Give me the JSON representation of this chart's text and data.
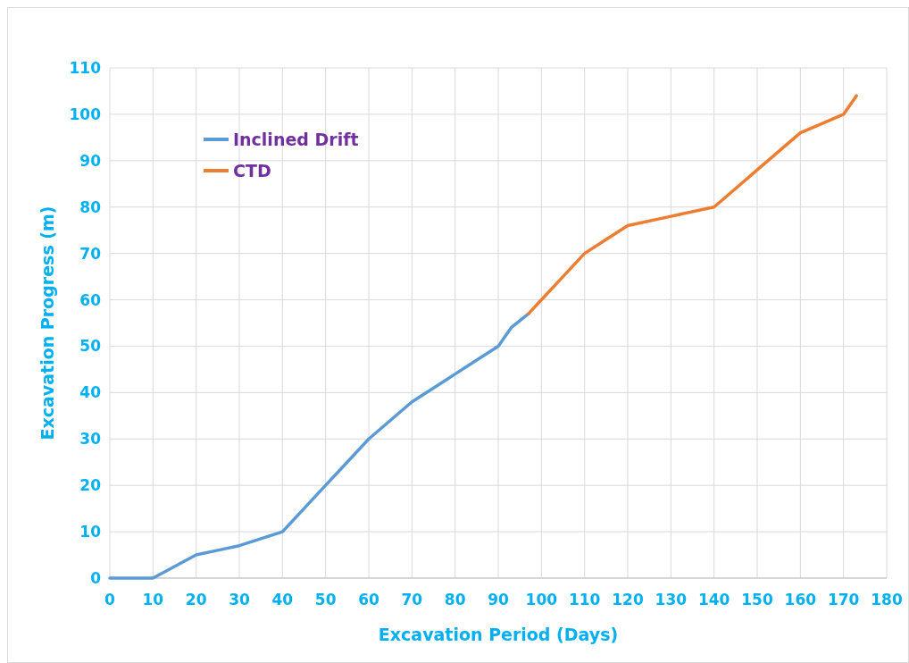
{
  "chart_data": {
    "type": "line",
    "xlabel": "Excavation Period (Days)",
    "ylabel": "Excavation Progress (m)",
    "xlim": [
      0,
      180
    ],
    "xticks": [
      0,
      10,
      20,
      30,
      40,
      50,
      60,
      70,
      80,
      90,
      100,
      110,
      120,
      130,
      140,
      150,
      160,
      170,
      180
    ],
    "ylim": [
      0,
      110
    ],
    "yticks": [
      0,
      10,
      20,
      30,
      40,
      50,
      60,
      70,
      80,
      90,
      100,
      110
    ],
    "grid": true,
    "legend": "top left",
    "marker": "none",
    "line_style": "solid",
    "series": [
      {
        "name": "Inclined Drift",
        "color": "#5b9bd5",
        "x": [
          0,
          10,
          15,
          20,
          25,
          30,
          35,
          40,
          42,
          45,
          50,
          55,
          60,
          65,
          70,
          75,
          80,
          85,
          90,
          93,
          97
        ],
        "values": [
          0,
          0,
          2.5,
          5,
          6,
          7,
          8.5,
          10,
          12,
          15,
          20,
          25,
          30,
          34,
          38,
          41,
          44,
          47,
          50,
          54,
          57
        ]
      },
      {
        "name": "CTD",
        "color": "#ed7d31",
        "x": [
          97,
          100,
          105,
          110,
          115,
          120,
          130,
          140,
          145,
          150,
          155,
          160,
          165,
          170,
          173
        ],
        "values": [
          57,
          60,
          65,
          70,
          73,
          76,
          78,
          80,
          84,
          88,
          92,
          96,
          98,
          100,
          104
        ]
      }
    ]
  }
}
